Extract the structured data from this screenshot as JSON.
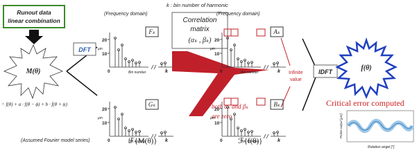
{
  "input": {
    "box": [
      "Runout data",
      "linear combination"
    ],
    "model": "M(θ)",
    "formula": "= f(θ) + a · f(θ − ϕ) + b · f(θ + ψ)",
    "caption": "(Assumed Fourier model series)",
    "transform": "ℱ{M(θ)}"
  },
  "dft": "DFT",
  "left_plots": {
    "domain": "(Frequency domain)",
    "top_label": "Fₖ",
    "bottom_label": "Gₖ",
    "ticks": [
      "20",
      "10",
      "0"
    ],
    "unit": "μm",
    "x_label": "Bin number",
    "x_end": "k"
  },
  "note": "k : bin number of harmonic",
  "matrix": {
    "title": [
      "Correlation",
      "matrix"
    ],
    "pair": "(αₖ , βₖ)"
  },
  "condition": [
    "If,",
    "both αₖ and βₖ",
    "are zero"
  ],
  "right_plots": {
    "domain": "(Frequency domain)",
    "top_label": "Aₖ",
    "bottom_label": "Bₖ",
    "ticks": [
      "20",
      "10",
      "0"
    ],
    "unit": "μm",
    "x_label": "Bin number",
    "x_end": "k",
    "annotation": [
      "Infinite",
      "value"
    ],
    "transform": "ℱ{f(θ)}"
  },
  "idft": "IDFT",
  "output": {
    "model": "f(θ)",
    "result": "Critical error computed",
    "y_label": "Probe output [μm]",
    "x_label": "Rotation angel [°]"
  }
}
